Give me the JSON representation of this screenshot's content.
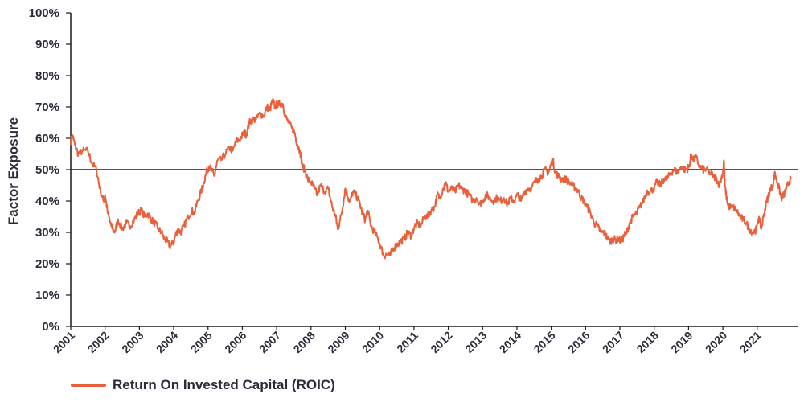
{
  "chart_data": {
    "type": "line",
    "ylabel": "Factor Exposure",
    "xlabel": "",
    "title": "",
    "ylim": [
      0,
      100
    ],
    "xlim": [
      2001.0,
      2022.2
    ],
    "y_ticks": [
      "0%",
      "10%",
      "20%",
      "30%",
      "40%",
      "50%",
      "60%",
      "70%",
      "80%",
      "90%",
      "100%"
    ],
    "x_ticks": [
      "2001",
      "2002",
      "2003",
      "2004",
      "2005",
      "2006",
      "2007",
      "2008",
      "2009",
      "2010",
      "2011",
      "2012",
      "2013",
      "2014",
      "2015",
      "2016",
      "2017",
      "2018",
      "2019",
      "2020",
      "2021"
    ],
    "reference_line": {
      "y": 50,
      "color": "#1a1a1a"
    },
    "legend": {
      "position": "bottom-left"
    },
    "grid": false,
    "series": [
      {
        "name": "Return On Invested Capital (ROIC)",
        "color": "#e8603c",
        "points": [
          [
            2001.0,
            59
          ],
          [
            2001.05,
            61
          ],
          [
            2001.12,
            58
          ],
          [
            2001.22,
            55
          ],
          [
            2001.35,
            56
          ],
          [
            2001.5,
            56
          ],
          [
            2001.62,
            52
          ],
          [
            2001.75,
            50
          ],
          [
            2001.85,
            44
          ],
          [
            2001.95,
            40
          ],
          [
            2002.0,
            42
          ],
          [
            2002.08,
            36
          ],
          [
            2002.18,
            32
          ],
          [
            2002.28,
            30
          ],
          [
            2002.38,
            34
          ],
          [
            2002.5,
            31
          ],
          [
            2002.62,
            33
          ],
          [
            2002.72,
            32
          ],
          [
            2002.85,
            34
          ],
          [
            2002.95,
            36
          ],
          [
            2003.05,
            37
          ],
          [
            2003.15,
            35
          ],
          [
            2003.25,
            36
          ],
          [
            2003.35,
            34
          ],
          [
            2003.45,
            33
          ],
          [
            2003.55,
            31
          ],
          [
            2003.65,
            30
          ],
          [
            2003.72,
            28
          ],
          [
            2003.82,
            27
          ],
          [
            2003.9,
            25.5
          ],
          [
            2004.0,
            27
          ],
          [
            2004.05,
            29
          ],
          [
            2004.12,
            31
          ],
          [
            2004.2,
            30
          ],
          [
            2004.3,
            32
          ],
          [
            2004.42,
            35
          ],
          [
            2004.52,
            37
          ],
          [
            2004.6,
            36
          ],
          [
            2004.7,
            40
          ],
          [
            2004.8,
            43
          ],
          [
            2004.88,
            46
          ],
          [
            2004.95,
            49
          ],
          [
            2005.02,
            51
          ],
          [
            2005.1,
            50
          ],
          [
            2005.18,
            48
          ],
          [
            2005.28,
            53
          ],
          [
            2005.38,
            53
          ],
          [
            2005.5,
            55
          ],
          [
            2005.62,
            57
          ],
          [
            2005.72,
            56
          ],
          [
            2005.82,
            59
          ],
          [
            2005.95,
            60
          ],
          [
            2006.05,
            62
          ],
          [
            2006.12,
            61
          ],
          [
            2006.2,
            65
          ],
          [
            2006.3,
            66
          ],
          [
            2006.4,
            66
          ],
          [
            2006.52,
            68
          ],
          [
            2006.62,
            67
          ],
          [
            2006.72,
            70
          ],
          [
            2006.8,
            69
          ],
          [
            2006.88,
            72
          ],
          [
            2006.95,
            70
          ],
          [
            2007.02,
            71
          ],
          [
            2007.1,
            71
          ],
          [
            2007.18,
            71
          ],
          [
            2007.25,
            67
          ],
          [
            2007.35,
            65
          ],
          [
            2007.45,
            63
          ],
          [
            2007.52,
            62
          ],
          [
            2007.6,
            58
          ],
          [
            2007.68,
            56
          ],
          [
            2007.75,
            51
          ],
          [
            2007.82,
            50
          ],
          [
            2007.9,
            47
          ],
          [
            2008.0,
            46
          ],
          [
            2008.1,
            44
          ],
          [
            2008.18,
            42
          ],
          [
            2008.28,
            45
          ],
          [
            2008.4,
            43
          ],
          [
            2008.5,
            44
          ],
          [
            2008.58,
            40
          ],
          [
            2008.65,
            37
          ],
          [
            2008.72,
            35
          ],
          [
            2008.78,
            31
          ],
          [
            2008.85,
            34
          ],
          [
            2008.92,
            38
          ],
          [
            2009.0,
            44
          ],
          [
            2009.08,
            41
          ],
          [
            2009.15,
            40
          ],
          [
            2009.22,
            43
          ],
          [
            2009.3,
            42
          ],
          [
            2009.4,
            40
          ],
          [
            2009.5,
            36
          ],
          [
            2009.58,
            34
          ],
          [
            2009.65,
            37
          ],
          [
            2009.75,
            32
          ],
          [
            2009.85,
            30
          ],
          [
            2009.95,
            28
          ],
          [
            2010.05,
            25
          ],
          [
            2010.12,
            22.5
          ],
          [
            2010.2,
            23
          ],
          [
            2010.3,
            22.5
          ],
          [
            2010.4,
            25
          ],
          [
            2010.5,
            26
          ],
          [
            2010.6,
            27
          ],
          [
            2010.72,
            28
          ],
          [
            2010.82,
            30
          ],
          [
            2010.92,
            29
          ],
          [
            2011.02,
            32
          ],
          [
            2011.1,
            33
          ],
          [
            2011.2,
            32
          ],
          [
            2011.3,
            35
          ],
          [
            2011.4,
            35
          ],
          [
            2011.5,
            37
          ],
          [
            2011.6,
            38
          ],
          [
            2011.68,
            42
          ],
          [
            2011.75,
            41
          ],
          [
            2011.85,
            44
          ],
          [
            2011.92,
            46
          ],
          [
            2012.0,
            43
          ],
          [
            2012.1,
            44
          ],
          [
            2012.2,
            43
          ],
          [
            2012.3,
            45
          ],
          [
            2012.4,
            44
          ],
          [
            2012.5,
            43
          ],
          [
            2012.6,
            42
          ],
          [
            2012.72,
            40
          ],
          [
            2012.82,
            41
          ],
          [
            2012.92,
            39
          ],
          [
            2013.0,
            40
          ],
          [
            2013.1,
            42
          ],
          [
            2013.2,
            41
          ],
          [
            2013.3,
            40
          ],
          [
            2013.42,
            41
          ],
          [
            2013.52,
            40
          ],
          [
            2013.62,
            41
          ],
          [
            2013.72,
            39
          ],
          [
            2013.82,
            41
          ],
          [
            2013.92,
            40
          ],
          [
            2014.02,
            42
          ],
          [
            2014.12,
            40
          ],
          [
            2014.22,
            43
          ],
          [
            2014.32,
            44
          ],
          [
            2014.42,
            44
          ],
          [
            2014.52,
            46
          ],
          [
            2014.62,
            47
          ],
          [
            2014.72,
            48
          ],
          [
            2014.82,
            50
          ],
          [
            2014.92,
            49
          ],
          [
            2015.0,
            52
          ],
          [
            2015.05,
            53
          ],
          [
            2015.12,
            49
          ],
          [
            2015.2,
            48
          ],
          [
            2015.3,
            47
          ],
          [
            2015.42,
            47
          ],
          [
            2015.52,
            46
          ],
          [
            2015.62,
            45
          ],
          [
            2015.72,
            44
          ],
          [
            2015.8,
            43
          ],
          [
            2015.88,
            41
          ],
          [
            2015.95,
            40
          ],
          [
            2016.05,
            38
          ],
          [
            2016.15,
            36
          ],
          [
            2016.25,
            33
          ],
          [
            2016.35,
            32
          ],
          [
            2016.45,
            30
          ],
          [
            2016.55,
            30
          ],
          [
            2016.62,
            28.5
          ],
          [
            2016.72,
            27
          ],
          [
            2016.8,
            28
          ],
          [
            2016.88,
            27.5
          ],
          [
            2016.95,
            28
          ],
          [
            2017.05,
            27
          ],
          [
            2017.12,
            29
          ],
          [
            2017.2,
            30
          ],
          [
            2017.28,
            33
          ],
          [
            2017.38,
            35
          ],
          [
            2017.48,
            36
          ],
          [
            2017.58,
            38
          ],
          [
            2017.68,
            40
          ],
          [
            2017.78,
            43
          ],
          [
            2017.88,
            43
          ],
          [
            2017.98,
            44
          ],
          [
            2018.08,
            46
          ],
          [
            2018.18,
            45
          ],
          [
            2018.28,
            47
          ],
          [
            2018.38,
            47
          ],
          [
            2018.48,
            49
          ],
          [
            2018.58,
            50
          ],
          [
            2018.68,
            49
          ],
          [
            2018.78,
            51
          ],
          [
            2018.88,
            50
          ],
          [
            2018.95,
            50
          ],
          [
            2019.02,
            51
          ],
          [
            2019.08,
            55
          ],
          [
            2019.15,
            53
          ],
          [
            2019.22,
            54
          ],
          [
            2019.32,
            51
          ],
          [
            2019.42,
            50
          ],
          [
            2019.52,
            50
          ],
          [
            2019.62,
            49
          ],
          [
            2019.72,
            48
          ],
          [
            2019.82,
            47
          ],
          [
            2019.9,
            45
          ],
          [
            2020.0,
            49
          ],
          [
            2020.03,
            53
          ],
          [
            2020.06,
            45
          ],
          [
            2020.12,
            40
          ],
          [
            2020.2,
            38
          ],
          [
            2020.3,
            38
          ],
          [
            2020.4,
            37
          ],
          [
            2020.5,
            35
          ],
          [
            2020.6,
            34
          ],
          [
            2020.68,
            33
          ],
          [
            2020.78,
            31
          ],
          [
            2020.88,
            30
          ],
          [
            2020.98,
            31
          ],
          [
            2021.05,
            35
          ],
          [
            2021.12,
            31
          ],
          [
            2021.2,
            36
          ],
          [
            2021.28,
            40
          ],
          [
            2021.36,
            43
          ],
          [
            2021.45,
            45
          ],
          [
            2021.52,
            49
          ],
          [
            2021.58,
            46
          ],
          [
            2021.64,
            44
          ],
          [
            2021.7,
            41
          ],
          [
            2021.78,
            42
          ],
          [
            2021.85,
            44
          ],
          [
            2021.92,
            46
          ],
          [
            2021.98,
            47
          ]
        ]
      }
    ]
  },
  "legend": {
    "label": "Return On Invested Capital (ROIC)",
    "color": "#e8603c"
  }
}
